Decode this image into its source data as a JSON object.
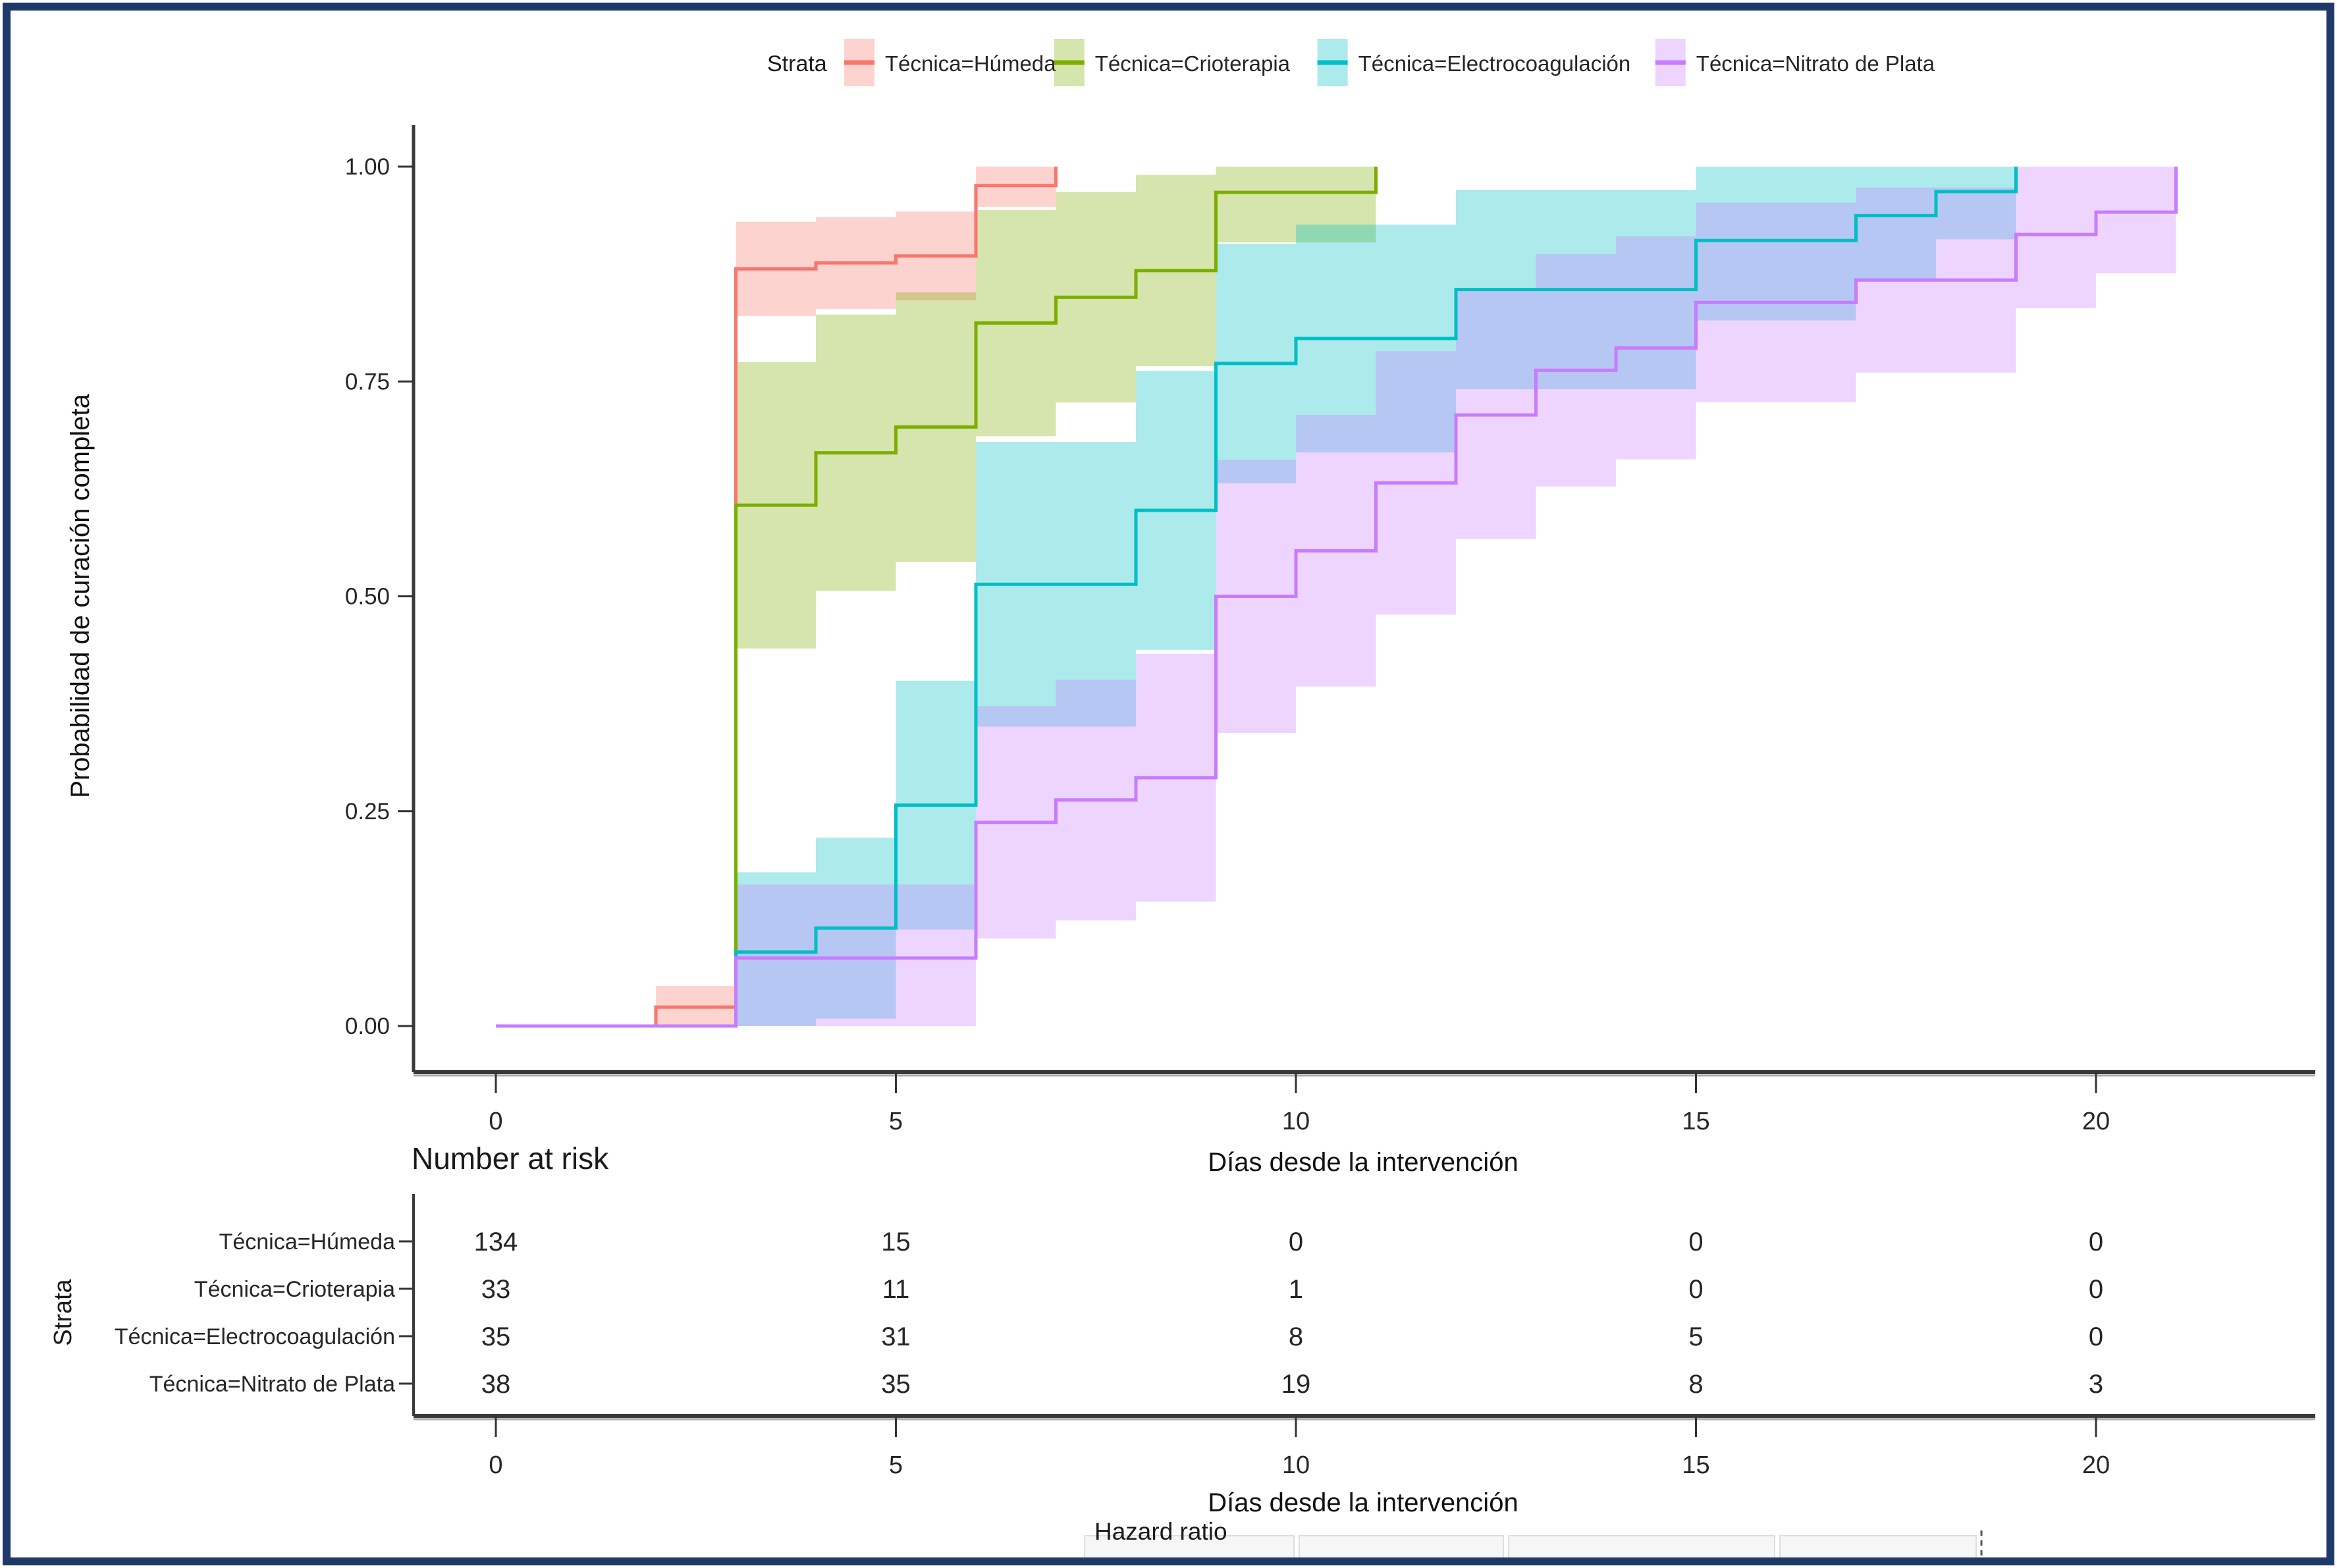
{
  "page": {
    "border_color": "#1f3a68",
    "background": "#ffffff"
  },
  "legend": {
    "title": "Strata"
  },
  "chart_data": {
    "type": "line",
    "subtype": "step-cumulative-incidence",
    "title": "",
    "xlabel": "Días desde la intervención",
    "ylabel": "Probabilidad de curación completa",
    "x_ticks": [
      0,
      5,
      10,
      15,
      20
    ],
    "y_ticks": [
      1.0,
      0.75,
      0.5,
      0.25,
      0.0
    ],
    "xlim": [
      -1,
      22.5
    ],
    "ylim": [
      0,
      1
    ],
    "grid": false,
    "legend_position": "top",
    "legend_title": "Strata",
    "series": [
      {
        "name": "Técnica=Húmeda",
        "color": "#F8766D",
        "n": 134,
        "steps": [
          [
            0,
            0
          ],
          [
            2,
            0.022
          ],
          [
            3,
            0.881
          ],
          [
            4,
            0.888
          ],
          [
            5,
            0.896
          ],
          [
            6,
            0.978
          ],
          [
            7,
            1.0
          ]
        ]
      },
      {
        "name": "Técnica=Crioterapia",
        "color": "#7CAE00",
        "n": 33,
        "steps": [
          [
            0,
            0
          ],
          [
            3,
            0.606
          ],
          [
            4,
            0.667
          ],
          [
            5,
            0.697
          ],
          [
            6,
            0.818
          ],
          [
            7,
            0.848
          ],
          [
            8,
            0.879
          ],
          [
            9,
            0.97
          ],
          [
            11,
            1.0
          ]
        ]
      },
      {
        "name": "Técnica=Electrocoagulación",
        "color": "#00BFC4",
        "n": 35,
        "steps": [
          [
            0,
            0
          ],
          [
            3,
            0.086
          ],
          [
            4,
            0.114
          ],
          [
            5,
            0.257
          ],
          [
            6,
            0.514
          ],
          [
            8,
            0.6
          ],
          [
            9,
            0.771
          ],
          [
            10,
            0.8
          ],
          [
            12,
            0.857
          ],
          [
            15,
            0.914
          ],
          [
            17,
            0.943
          ],
          [
            18,
            0.971
          ],
          [
            19,
            1.0
          ]
        ]
      },
      {
        "name": "Técnica=Nitrato de Plata",
        "color": "#C77CFF",
        "n": 38,
        "steps": [
          [
            0,
            0
          ],
          [
            3,
            0.079
          ],
          [
            6,
            0.237
          ],
          [
            7,
            0.263
          ],
          [
            8,
            0.289
          ],
          [
            9,
            0.5
          ],
          [
            10,
            0.553
          ],
          [
            11,
            0.632
          ],
          [
            12,
            0.711
          ],
          [
            13,
            0.763
          ],
          [
            14,
            0.789
          ],
          [
            15,
            0.842
          ],
          [
            17,
            0.868
          ],
          [
            19,
            0.921
          ],
          [
            20,
            0.947
          ],
          [
            21,
            1.0
          ]
        ]
      }
    ]
  },
  "risk_table": {
    "title": "Number at risk",
    "ylabel": "Strata",
    "xlabel": "Días desde la intervención",
    "x_ticks": [
      0,
      5,
      10,
      15,
      20
    ],
    "rows": [
      {
        "label": "Técnica=Húmeda",
        "color": "#F8766D",
        "values": [
          "134",
          "15",
          "0",
          "0",
          "0"
        ]
      },
      {
        "label": "Técnica=Crioterapia",
        "color": "#7CAE00",
        "values": [
          "33",
          "11",
          "1",
          "0",
          "0"
        ]
      },
      {
        "label": "Técnica=Electrocoagulación",
        "color": "#00BFC4",
        "values": [
          "35",
          "31",
          "8",
          "5",
          "0"
        ]
      },
      {
        "label": "Técnica=Nitrato de Plata",
        "color": "#C77CFF",
        "values": [
          "38",
          "35",
          "19",
          "8",
          "3"
        ]
      }
    ]
  },
  "footer": {
    "hazard_label": "Hazard ratio"
  }
}
